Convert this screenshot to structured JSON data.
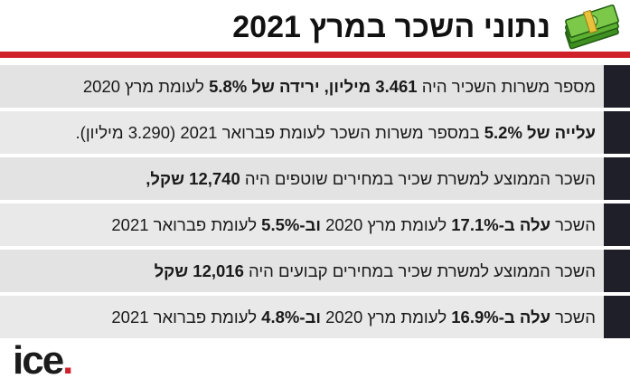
{
  "title": "נתוני השכר במרץ 2021",
  "icon": "money-stack-icon",
  "colors": {
    "accent": "#d0202a",
    "row_bar": "#1f1f2a",
    "row_bg": "#e3e3e3"
  },
  "rows": [
    {
      "t1": "מספר משרות השכיר היה ",
      "b1": "3.461 מיליון, ירידה של 5.8%",
      "t2": " לעומת מרץ 2020",
      "b2": "",
      "t3": ""
    },
    {
      "t1": "",
      "b1": "עלייה של 5.2%",
      "t2": " במספר משרות השכר לעומת פברואר 2021 (3.290 מיליון).",
      "b2": "",
      "t3": ""
    },
    {
      "t1": "השכר הממוצע למשרת שכיר במחירים שוטפים היה ",
      "b1": "12,740 שקל,",
      "t2": "",
      "b2": "",
      "t3": ""
    },
    {
      "t1": "השכר ",
      "b1": "עלה ב-17.1%",
      "t2": " לעומת מרץ 2020 ",
      "b2": "וב-5.5%",
      "t3": " לעומת פברואר 2021"
    },
    {
      "t1": "השכר הממוצע למשרת שכיר במחירים קבועים היה ",
      "b1": "12,016 שקל",
      "t2": "",
      "b2": "",
      "t3": ""
    },
    {
      "t1": "השכר ",
      "b1": "עלה ב-16.9%",
      "t2": " לעומת מרץ 2020 ",
      "b2": "וב-4.8%",
      "t3": " לעומת פברואר 2021"
    }
  ],
  "logo": {
    "text": "ice",
    "dot": "."
  }
}
